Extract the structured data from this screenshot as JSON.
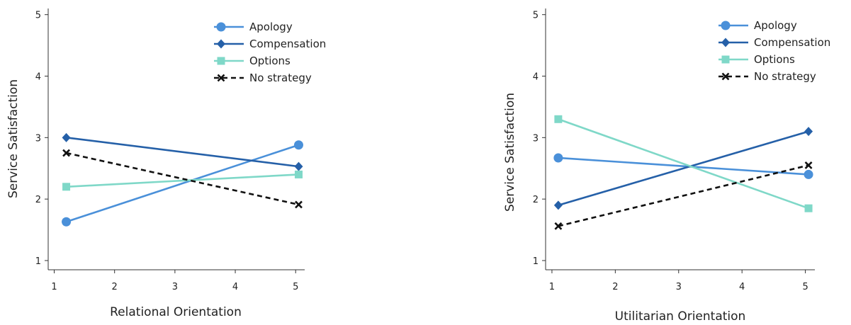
{
  "chart_data": [
    {
      "type": "line",
      "title": "",
      "xlabel": "Relational Orientation",
      "ylabel": "Service Satisfaction",
      "xlim": [
        0.9,
        5.15
      ],
      "ylim": [
        0.85,
        5.1
      ],
      "xticks": [
        "1",
        "2",
        "3",
        "4",
        "5"
      ],
      "yticks": [
        "1",
        "2",
        "3",
        "4",
        "5"
      ],
      "grid": false,
      "legend": "top-right",
      "x": [
        1.2,
        5.05
      ],
      "series": [
        {
          "name": "Apology",
          "values": [
            1.63,
            2.88
          ],
          "color": "#4a90d9",
          "marker": "circle",
          "dash": false
        },
        {
          "name": "Compensation",
          "values": [
            3.0,
            2.53
          ],
          "color": "#2560a8",
          "marker": "diamond",
          "dash": false
        },
        {
          "name": "Options",
          "values": [
            2.2,
            2.4
          ],
          "color": "#7fd8c8",
          "marker": "square",
          "dash": false
        },
        {
          "name": "No strategy",
          "values": [
            2.75,
            1.91
          ],
          "color": "#111111",
          "marker": "x",
          "dash": true
        }
      ]
    },
    {
      "type": "line",
      "title": "",
      "xlabel": "Utilitarian Orientation",
      "ylabel": "Service Satisfaction",
      "xlim": [
        0.9,
        5.15
      ],
      "ylim": [
        0.85,
        5.1
      ],
      "xticks": [
        "1",
        "2",
        "3",
        "4",
        "5"
      ],
      "yticks": [
        "1",
        "2",
        "3",
        "4",
        "5"
      ],
      "grid": false,
      "legend": "top-right",
      "x": [
        1.1,
        5.05
      ],
      "series": [
        {
          "name": "Apology",
          "values": [
            2.67,
            2.4
          ],
          "color": "#4a90d9",
          "marker": "circle",
          "dash": false
        },
        {
          "name": "Compensation",
          "values": [
            1.9,
            3.1
          ],
          "color": "#2560a8",
          "marker": "diamond",
          "dash": false
        },
        {
          "name": "Options",
          "values": [
            3.3,
            1.85
          ],
          "color": "#7fd8c8",
          "marker": "square",
          "dash": false
        },
        {
          "name": "No strategy",
          "values": [
            1.56,
            2.55
          ],
          "color": "#111111",
          "marker": "x",
          "dash": true
        }
      ]
    }
  ]
}
